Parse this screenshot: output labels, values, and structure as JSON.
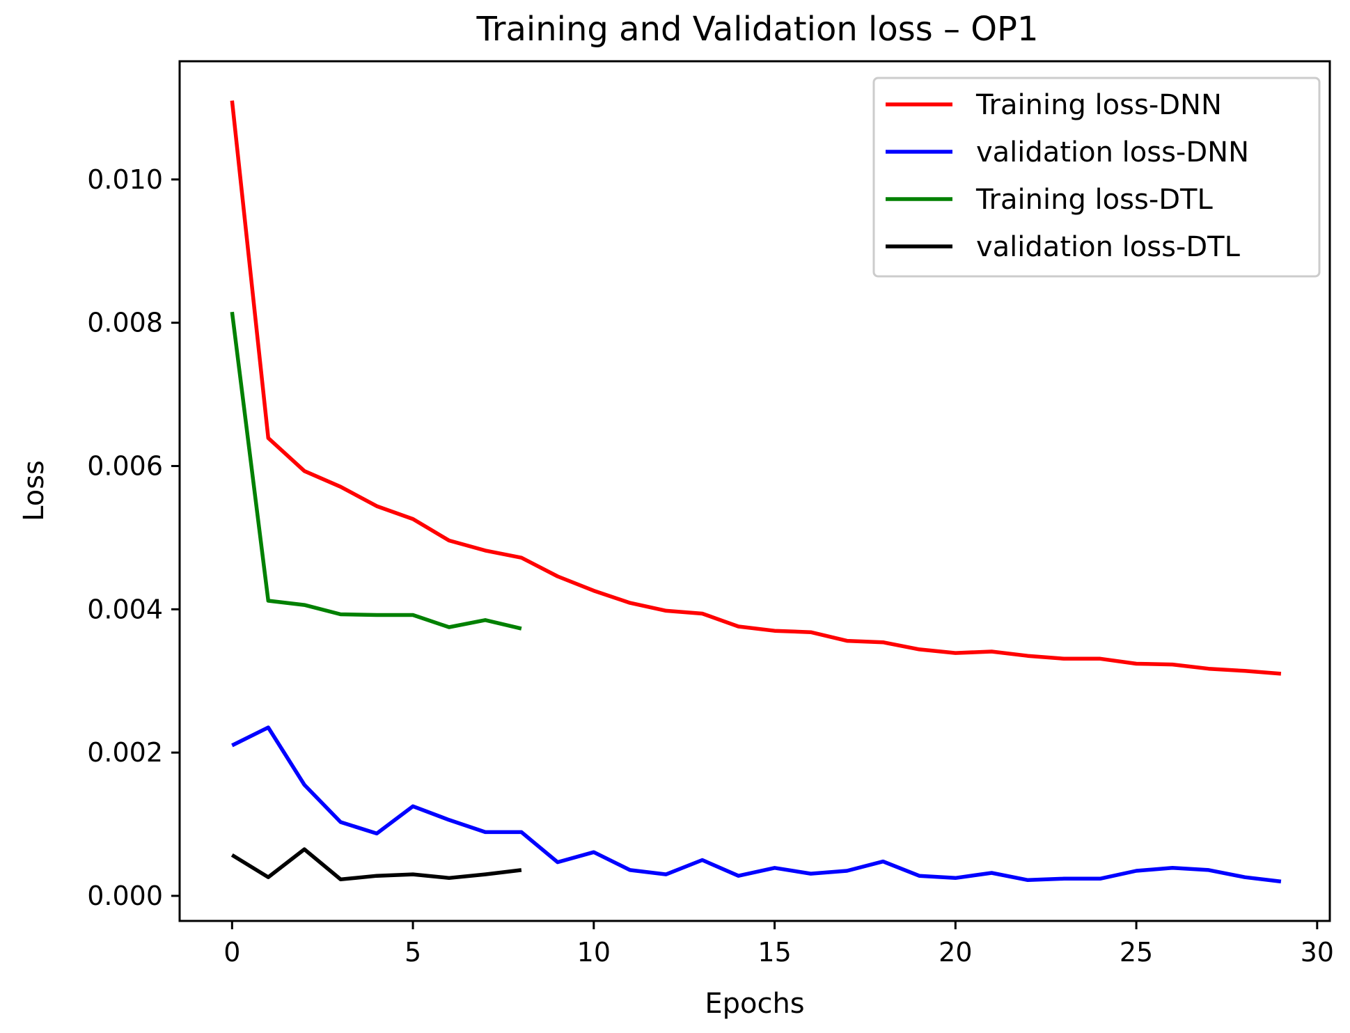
{
  "chart_data": {
    "type": "line",
    "title": "Training and Validation loss – OP1",
    "xlabel": "Epochs",
    "ylabel": "Loss",
    "xlim": [
      -1.45,
      30.35
    ],
    "ylim": [
      -0.00035,
      0.01165
    ],
    "xticks": [
      0,
      5,
      10,
      15,
      20,
      25,
      30
    ],
    "xtick_labels": [
      "0",
      "5",
      "10",
      "15",
      "20",
      "25",
      "30"
    ],
    "yticks": [
      0.0,
      0.002,
      0.004,
      0.006,
      0.008,
      0.01
    ],
    "ytick_labels": [
      "0.000",
      "0.002",
      "0.004",
      "0.006",
      "0.008",
      "0.010"
    ],
    "grid": false,
    "legend_position": "top-right",
    "series": [
      {
        "name": "Training loss-DNN",
        "color": "#ff0000",
        "x": [
          0,
          1,
          2,
          3,
          4,
          5,
          6,
          7,
          8,
          9,
          10,
          11,
          12,
          13,
          14,
          15,
          16,
          17,
          18,
          19,
          20,
          21,
          22,
          23,
          24,
          25,
          26,
          27,
          28,
          29
        ],
        "values": [
          0.0111,
          0.00639,
          0.00593,
          0.00571,
          0.00544,
          0.00526,
          0.00496,
          0.00482,
          0.00472,
          0.00446,
          0.00426,
          0.00409,
          0.00398,
          0.00394,
          0.00376,
          0.0037,
          0.00368,
          0.00356,
          0.00354,
          0.00344,
          0.00339,
          0.00341,
          0.00335,
          0.00331,
          0.00331,
          0.00324,
          0.00323,
          0.00317,
          0.00314,
          0.0031
        ]
      },
      {
        "name": "validation loss-DNN",
        "color": "#0000ff",
        "x": [
          0,
          1,
          2,
          3,
          4,
          5,
          6,
          7,
          8,
          9,
          10,
          11,
          12,
          13,
          14,
          15,
          16,
          17,
          18,
          19,
          20,
          21,
          22,
          23,
          24,
          25,
          26,
          27,
          28,
          29
        ],
        "values": [
          0.0021,
          0.00235,
          0.00155,
          0.00103,
          0.00087,
          0.00125,
          0.00106,
          0.00089,
          0.00089,
          0.00047,
          0.00061,
          0.00036,
          0.0003,
          0.0005,
          0.00028,
          0.00039,
          0.00031,
          0.00035,
          0.00048,
          0.00028,
          0.00025,
          0.00032,
          0.00022,
          0.00024,
          0.00024,
          0.00035,
          0.00039,
          0.00036,
          0.00026,
          0.0002
        ]
      },
      {
        "name": "Training loss-DTL",
        "color": "#008000",
        "x": [
          0,
          1,
          2,
          3,
          4,
          5,
          6,
          7,
          8
        ],
        "values": [
          0.00815,
          0.00412,
          0.00406,
          0.00393,
          0.00392,
          0.00392,
          0.00375,
          0.00385,
          0.00373
        ]
      },
      {
        "name": "validation loss-DTL",
        "color": "#000000",
        "x": [
          0,
          1,
          2,
          3,
          4,
          5,
          6,
          7,
          8
        ],
        "values": [
          0.00057,
          0.00026,
          0.00065,
          0.00023,
          0.00028,
          0.0003,
          0.00025,
          0.0003,
          0.00036
        ]
      }
    ]
  }
}
